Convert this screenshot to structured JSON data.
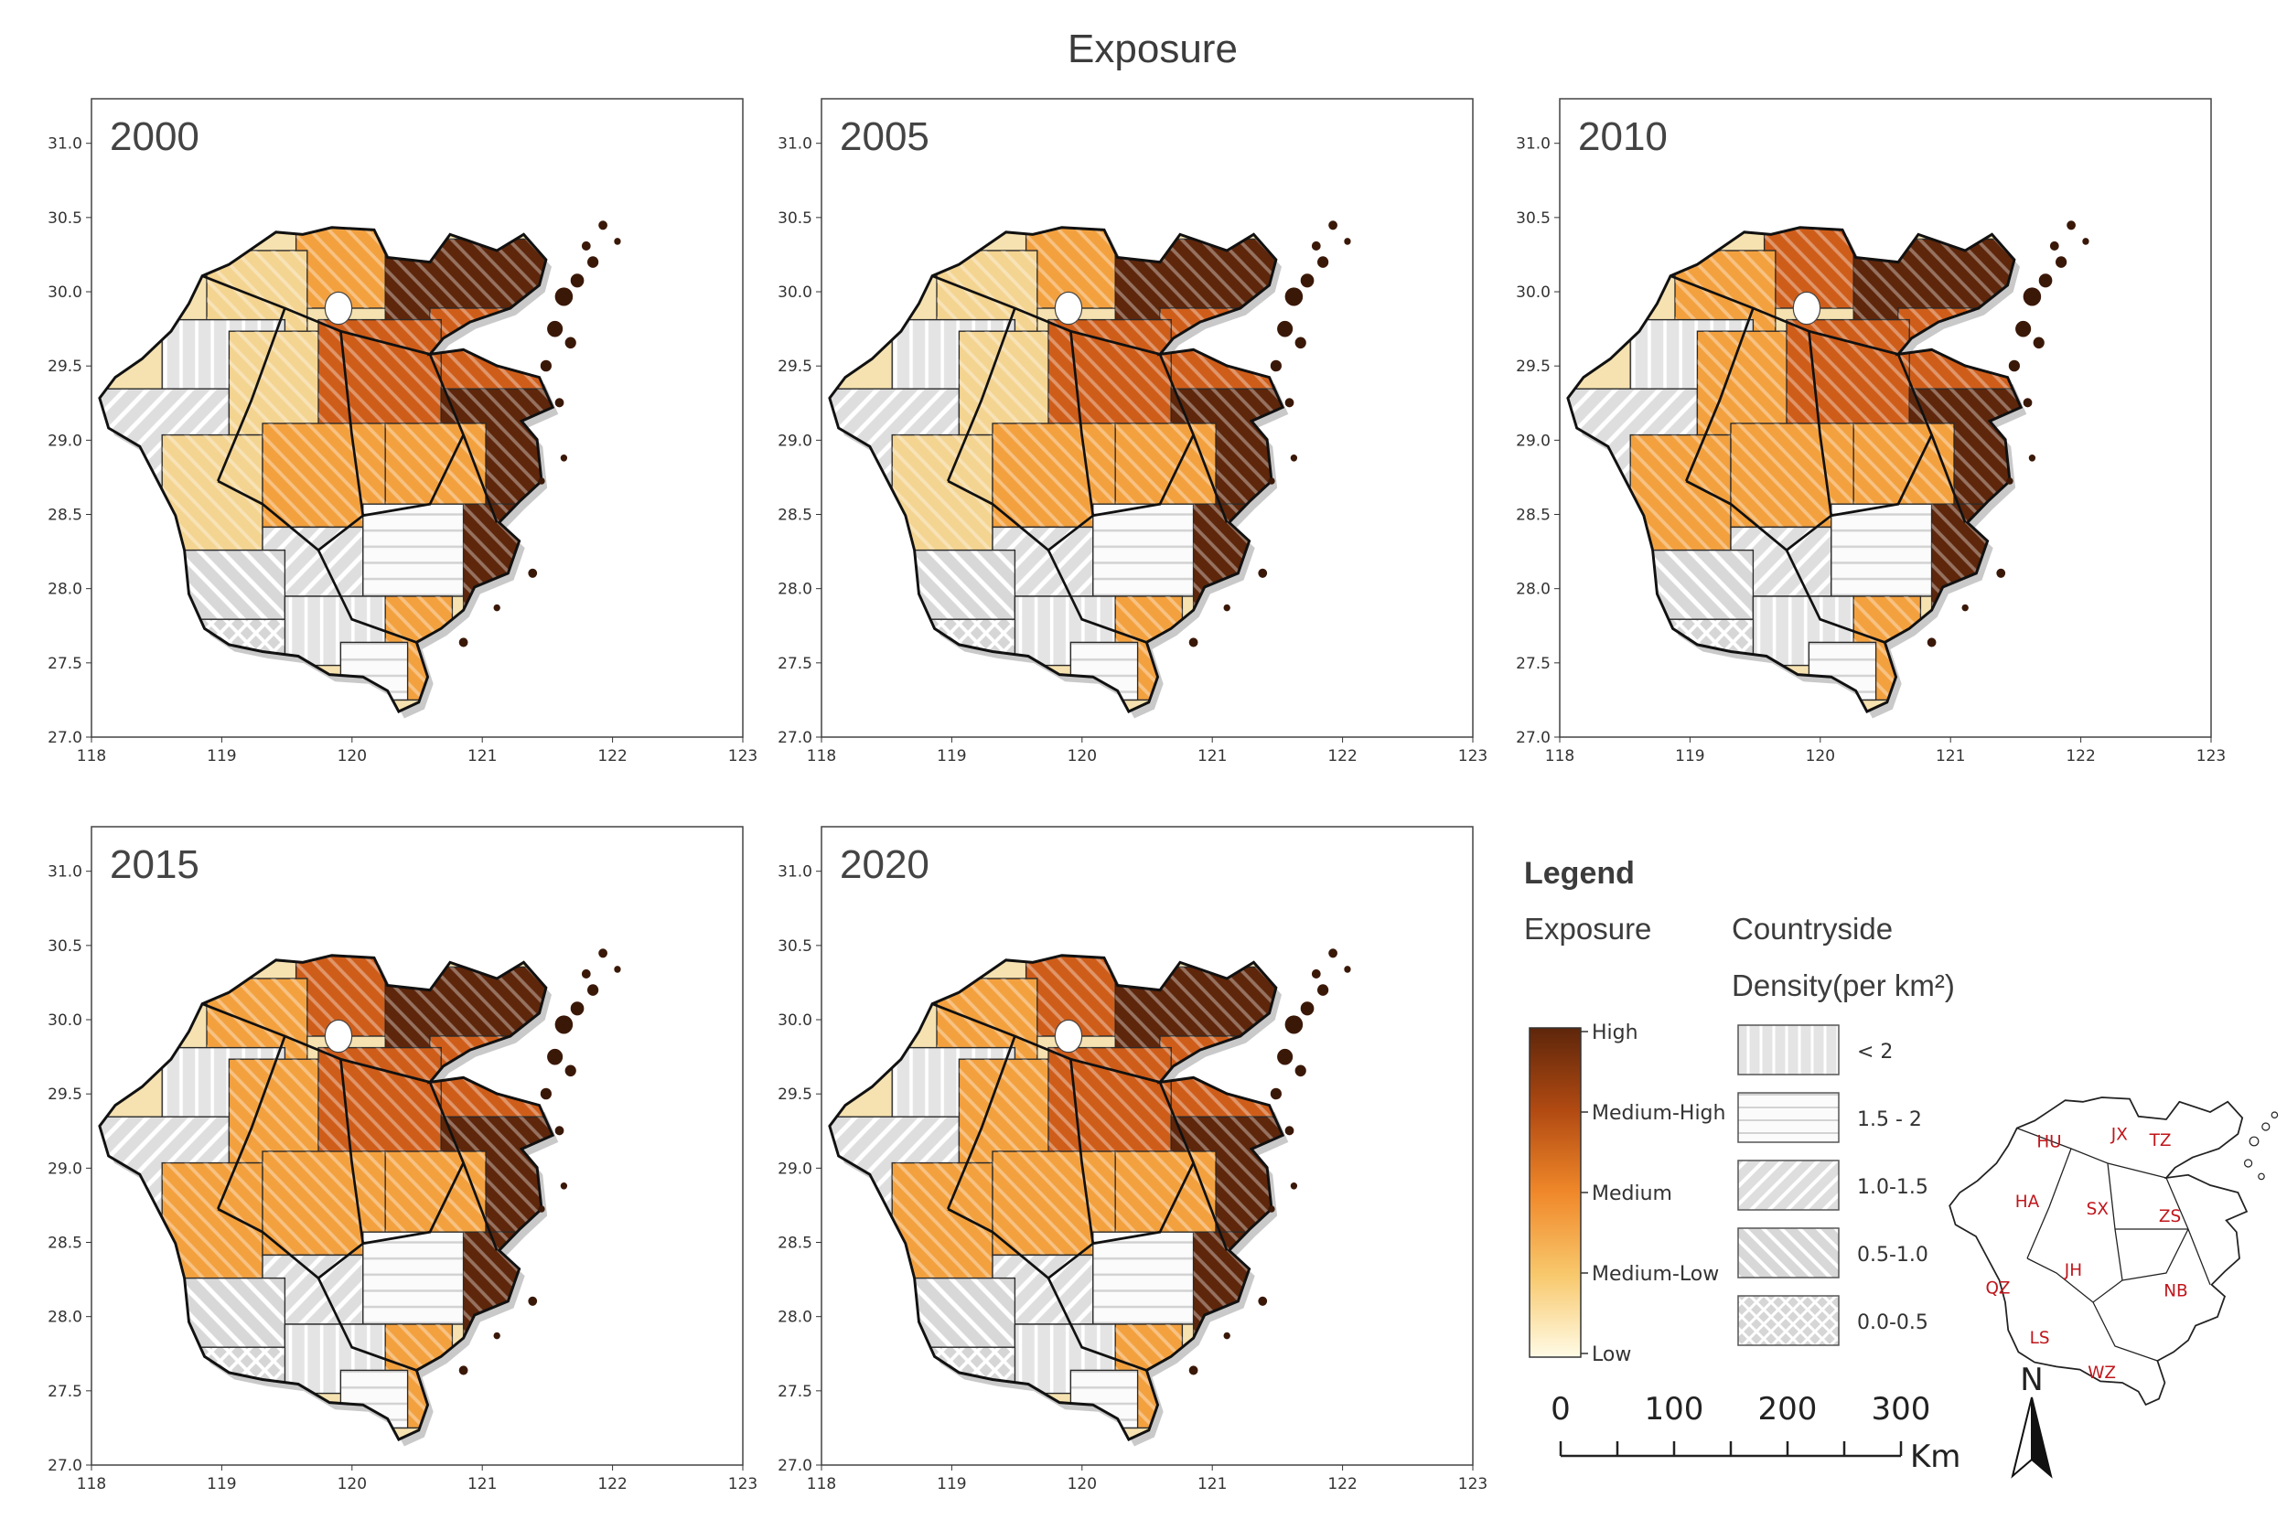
{
  "title": "Exposure",
  "panels": [
    {
      "year": "2000"
    },
    {
      "year": "2005"
    },
    {
      "year": "2010"
    },
    {
      "year": "2015"
    },
    {
      "year": "2020"
    }
  ],
  "axes": {
    "x_ticks": [
      "118",
      "119",
      "120",
      "121",
      "122",
      "123"
    ],
    "y_ticks": [
      "27.0",
      "27.5",
      "28.0",
      "28.5",
      "29.0",
      "29.5",
      "30.0",
      "30.5",
      "31.0"
    ],
    "x_range": [
      118,
      123
    ],
    "y_range": [
      27.0,
      31.3
    ]
  },
  "legend": {
    "title": "Legend",
    "exposure_title": "Exposure",
    "countryside_title_line1": "Countryside",
    "countryside_title_line2": "Density(per km²)",
    "exposure_levels": [
      "High",
      "Medium-High",
      "Medium",
      "Medium-Low",
      "Low"
    ],
    "colors": [
      "#5e260b",
      "#cf5d1a",
      "#f3a13f",
      "#f4d491",
      "#fffbe6"
    ],
    "density_classes": [
      "< 2",
      "1.5 - 2",
      "1.0-1.5",
      "0.5-1.0",
      "0.0-0.5"
    ]
  },
  "scale_bar": {
    "labels": [
      "0",
      "100",
      "200",
      "300"
    ],
    "unit": "Km"
  },
  "north": "N",
  "inset_regions": [
    "HU",
    "JX",
    "TZ",
    "HA",
    "SX",
    "ZS",
    "QZ",
    "JH",
    "NB",
    "LS",
    "WZ"
  ]
}
